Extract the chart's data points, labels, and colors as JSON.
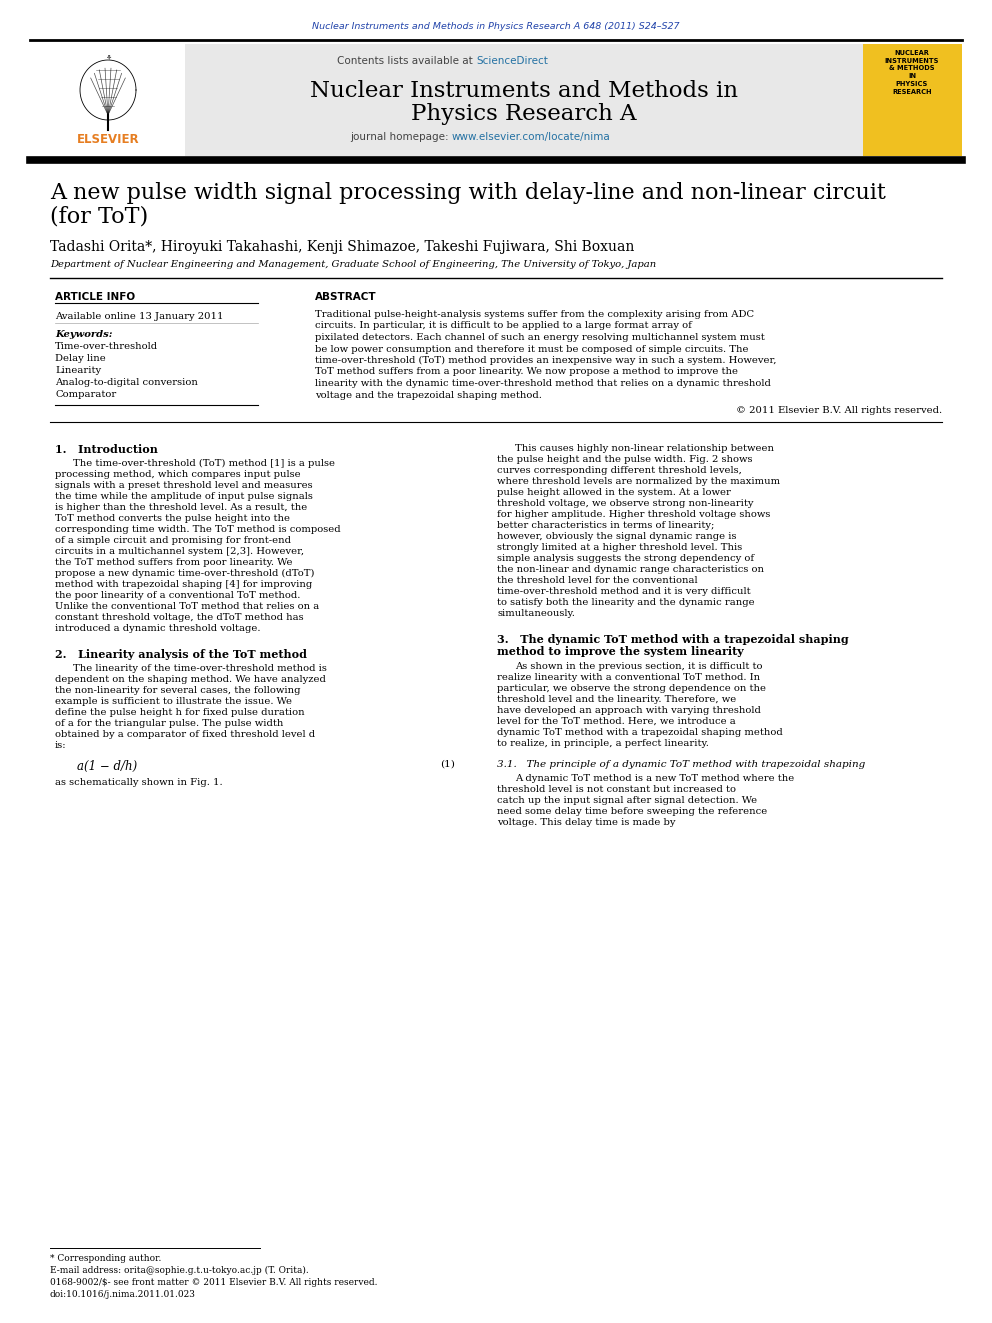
{
  "journal_ref": "Nuclear Instruments and Methods in Physics Research A 648 (2011) S24–S27",
  "journal_name_line1": "Nuclear Instruments and Methods in",
  "journal_name_line2": "Physics Research A",
  "contents_line": "Contents lists available at ScienceDirect",
  "journal_homepage_plain": "journal homepage: ",
  "journal_homepage_link": "www.elsevier.com/locate/nima",
  "paper_title_line1": "A new pulse width signal processing with delay-line and non-linear circuit",
  "paper_title_line2": "(for ToT)",
  "authors": "Tadashi Orita*, Hiroyuki Takahashi, Kenji Shimazoe, Takeshi Fujiwara, Shi Boxuan",
  "affiliation": "Department of Nuclear Engineering and Management, Graduate School of Engineering, The University of Tokyo, Japan",
  "article_info_header": "ARTICLE INFO",
  "abstract_header": "ABSTRACT",
  "available_online": "Available online 13 January 2011",
  "keywords_header": "Keywords:",
  "keywords": [
    "Time-over-threshold",
    "Delay line",
    "Linearity",
    "Analog-to-digital conversion",
    "Comparator"
  ],
  "copyright": "© 2011 Elsevier B.V. All rights reserved.",
  "abstract_text": "Traditional pulse-height-analysis systems suffer from the complexity arising from ADC circuits. In particular, it is difficult to be applied to a large format array of pixilated detectors. Each channel of such an energy resolving multichannel system must be low power consumption and therefore it must be composed of simple circuits. The time-over-threshold (ToT) method provides an inexpensive way in such a system. However, ToT method suffers from a poor linearity. We now propose a method to improve the linearity with the dynamic time-over-threshold method that relies on a dynamic threshold voltage and the trapezoidal shaping method.",
  "section1_header": "1.   Introduction",
  "section1_col1": "The time-over-threshold (ToT) method [1] is a pulse processing method, which compares input pulse signals with a preset threshold level and measures the time while the amplitude of input pulse signals is higher than the threshold level. As a result, the ToT method converts the pulse height into the corresponding time width. The ToT method is composed of a simple circuit and promising for front-end circuits in a multichannel system [2,3]. However, the ToT method suffers from poor linearity. We propose a new dynamic time-over-threshold (dToT) method with trapezoidal shaping [4] for improving the poor linearity of a conventional ToT method. Unlike the conventional ToT method that relies on a constant threshold voltage, the dToT method has introduced a dynamic threshold voltage.",
  "section1_col2": "This causes highly non-linear relationship between the pulse height and the pulse width. Fig. 2 shows curves corresponding different threshold levels, where threshold levels are normalized by the maximum pulse height allowed in the system. At a lower threshold voltage, we observe strong non-linearity for higher amplitude. Higher threshold voltage shows better characteristics in terms of linearity; however, obviously the signal dynamic range is strongly limited at a higher threshold level. This simple analysis suggests the strong dependency of the non-linear and dynamic range characteristics on the threshold level for the conventional time-over-threshold method and it is very difficult to satisfy both the linearity and the dynamic range simultaneously.",
  "section2_header": "2.   Linearity analysis of the ToT method",
  "section2_text": "The linearity of the time-over-threshold method is dependent on the shaping method. We have analyzed the non-linearity for several cases, the following example is sufficient to illustrate the issue. We define the pulse height h for fixed pulse duration of a for the triangular pulse. The pulse width obtained by a comparator of fixed threshold level d is:",
  "equation": "a(1 − d/h)",
  "equation_number": "(1)",
  "equation_note": "as schematically shown in Fig. 1.",
  "section3_header_line1": "3.   The dynamic ToT method with a trapezoidal shaping",
  "section3_header_line2": "method to improve the system linearity",
  "section3_text": "As shown in the previous section, it is difficult to realize linearity with a conventional ToT method. In particular, we observe the strong dependence on the threshold level and the linearity. Therefore, we have developed an approach with varying threshold level for the ToT method. Here, we introduce a dynamic ToT method with a trapezoidal shaping method to realize, in principle, a perfect linearity.",
  "section31_header": "3.1.   The principle of a dynamic ToT method with trapezoidal shaping",
  "section31_text": "A dynamic ToT method is a new ToT method where the threshold level is not constant but increased to catch up the input signal after signal detection. We need some delay time before sweeping the reference voltage. This delay time is made by",
  "footnote_star": "* Corresponding author.",
  "footnote_email": "E-mail address: orita@sophie.g.t.u-tokyo.ac.jp (T. Orita).",
  "footer_line1": "0168-9002/$- see front matter © 2011 Elsevier B.V. All rights reserved.",
  "footer_line2": "doi:10.1016/j.nima.2011.01.023",
  "bg_color": "#ffffff",
  "header_bg": "#e8e8e8",
  "yellow_box_bg": "#f0c020",
  "blue_color": "#2244aa",
  "link_color": "#2471a3",
  "orange_color": "#e67e22"
}
